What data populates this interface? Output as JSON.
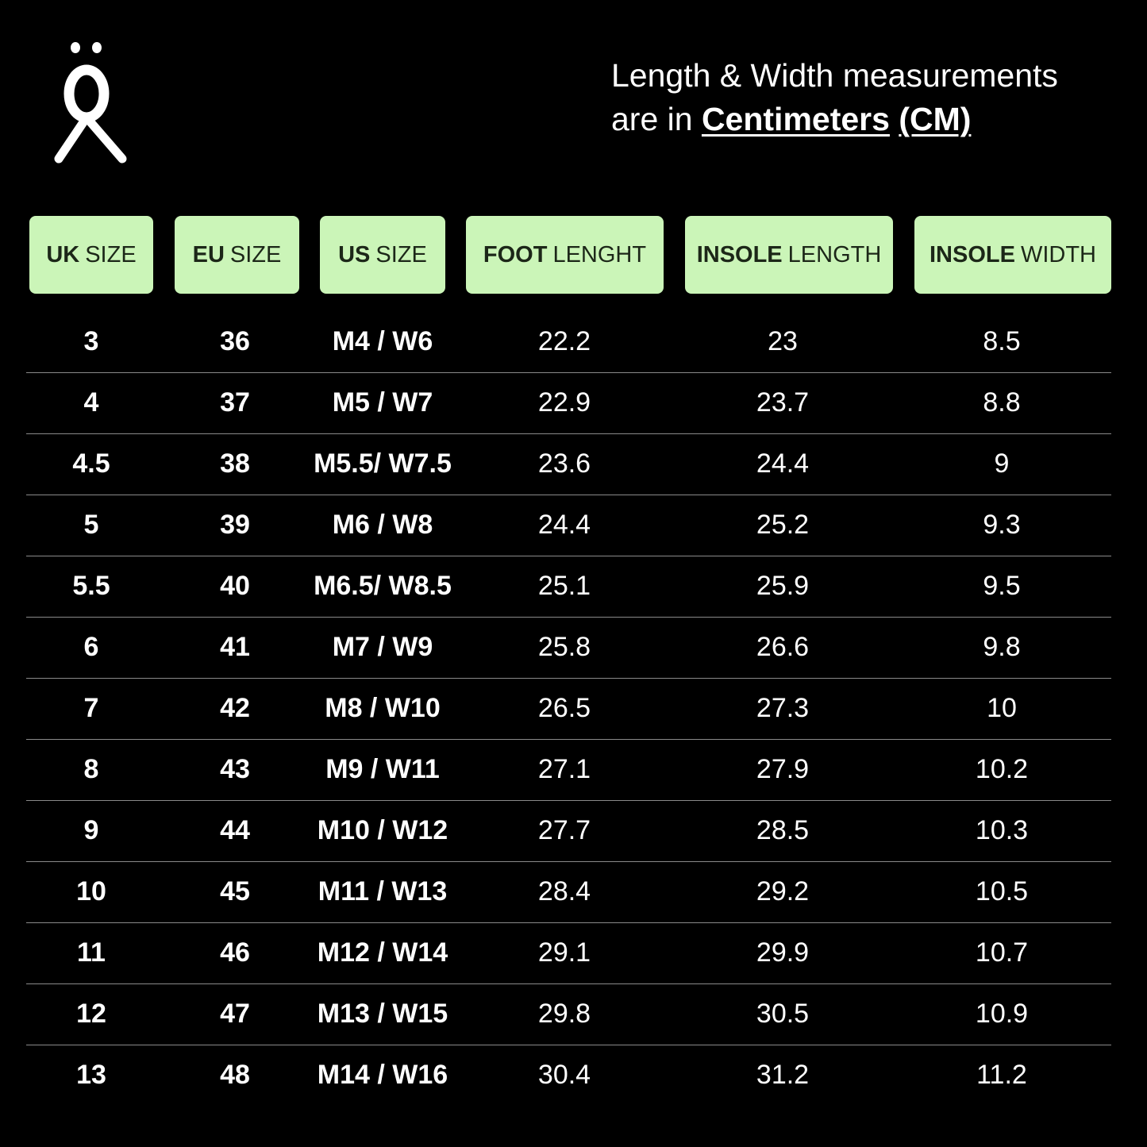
{
  "note": {
    "line1": "Length & Width measurements",
    "line2_prefix": "are in ",
    "unit_word": "Centimeters",
    "unit_abbr": "(CM)"
  },
  "colors": {
    "header_bg": "#cbf5b8",
    "header_text": "#1c2718",
    "background": "#000000"
  },
  "columns": [
    {
      "bold": "UK",
      "rest": "SIZE"
    },
    {
      "bold": "EU",
      "rest": "SIZE"
    },
    {
      "bold": "US",
      "rest": "SIZE"
    },
    {
      "bold": "FOOT",
      "rest": "LENGHT"
    },
    {
      "bold": "INSOLE",
      "rest": "LENGTH"
    },
    {
      "bold": "INSOLE",
      "rest": "WIDTH"
    }
  ],
  "rows": [
    [
      "3",
      "36",
      "M4 / W6",
      "22.2",
      "23",
      "8.5"
    ],
    [
      "4",
      "37",
      "M5 / W7",
      "22.9",
      "23.7",
      "8.8"
    ],
    [
      "4.5",
      "38",
      "M5.5/ W7.5",
      "23.6",
      "24.4",
      "9"
    ],
    [
      "5",
      "39",
      "M6 / W8",
      "24.4",
      "25.2",
      "9.3"
    ],
    [
      "5.5",
      "40",
      "M6.5/ W8.5",
      "25.1",
      "25.9",
      "9.5"
    ],
    [
      "6",
      "41",
      "M7 / W9",
      "25.8",
      "26.6",
      "9.8"
    ],
    [
      "7",
      "42",
      "M8 / W10",
      "26.5",
      "27.3",
      "10"
    ],
    [
      "8",
      "43",
      "M9 / W11",
      "27.1",
      "27.9",
      "10.2"
    ],
    [
      "9",
      "44",
      "M10 / W12",
      "27.7",
      "28.5",
      "10.3"
    ],
    [
      "10",
      "45",
      "M11 / W13",
      "28.4",
      "29.2",
      "10.5"
    ],
    [
      "11",
      "46",
      "M12 / W14",
      "29.1",
      "29.9",
      "10.7"
    ],
    [
      "12",
      "47",
      "M13 / W15",
      "29.8",
      "30.5",
      "10.9"
    ],
    [
      "13",
      "48",
      "M14 / W16",
      "30.4",
      "31.2",
      "11.2"
    ]
  ]
}
